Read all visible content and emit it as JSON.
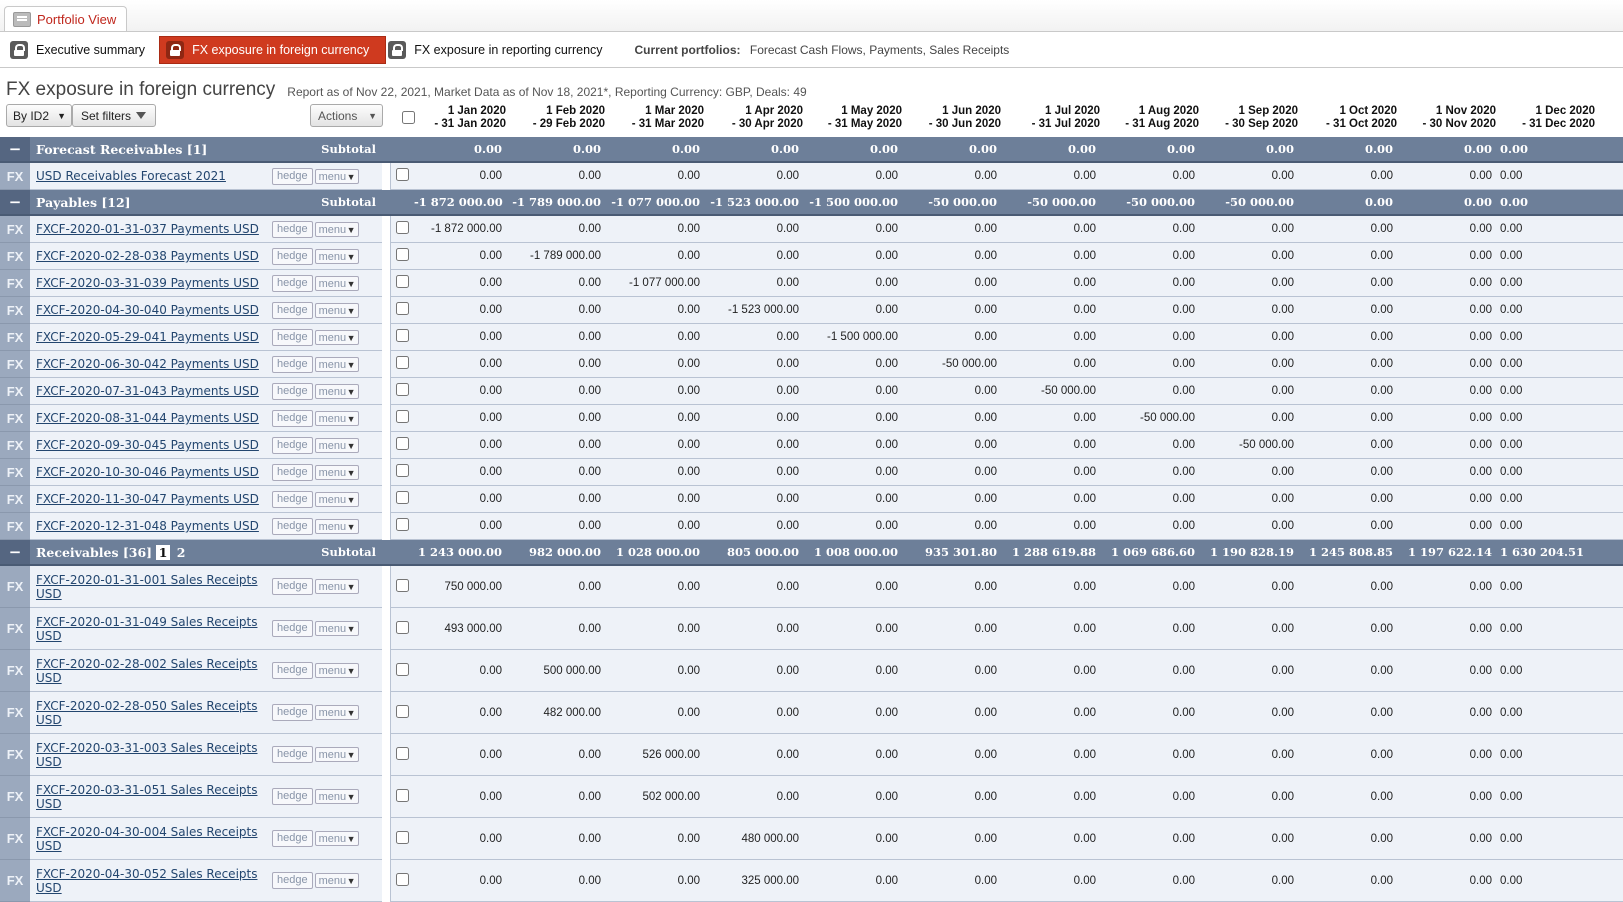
{
  "main_tab": {
    "label": "Portfolio View",
    "icon": "portfolio-icon"
  },
  "subtabs": [
    {
      "label": "Executive summary",
      "icon": "lock-icon",
      "active": false
    },
    {
      "label": "FX exposure in foreign currency",
      "icon": "lock-icon",
      "active": true
    },
    {
      "label": "FX exposure in reporting currency",
      "icon": "lock-icon",
      "active": false
    }
  ],
  "current_portfolios": {
    "label": "Current portfolios:",
    "value": "Forecast Cash Flows, Payments, Sales Receipts"
  },
  "report": {
    "title": "FX exposure in foreign currency",
    "meta": "Report as of Nov 22, 2021, Market Data as of Nov 18, 2021*, Reporting Currency: GBP, Deals: 49"
  },
  "controls": {
    "group_by": "By ID2",
    "set_filters": "Set filters",
    "actions": "Actions"
  },
  "columns": [
    {
      "l1": "1 Jan 2020",
      "l2": "- 31 Jan 2020"
    },
    {
      "l1": "1 Feb 2020",
      "l2": "- 29 Feb 2020"
    },
    {
      "l1": "1 Mar 2020",
      "l2": "- 31 Mar 2020"
    },
    {
      "l1": "1 Apr 2020",
      "l2": "- 30 Apr 2020"
    },
    {
      "l1": "1 May 2020",
      "l2": "- 31 May 2020"
    },
    {
      "l1": "1 Jun 2020",
      "l2": "- 30 Jun 2020"
    },
    {
      "l1": "1 Jul 2020",
      "l2": "- 31 Jul 2020"
    },
    {
      "l1": "1 Aug 2020",
      "l2": "- 31 Aug 2020"
    },
    {
      "l1": "1 Sep 2020",
      "l2": "- 30 Sep 2020"
    },
    {
      "l1": "1 Oct 2020",
      "l2": "- 31 Oct 2020"
    },
    {
      "l1": "1 Nov 2020",
      "l2": "- 30 Nov 2020"
    },
    {
      "l1": "1 Dec 2020",
      "l2": "- 31 Dec 2020"
    }
  ],
  "labels": {
    "subtotal": "Subtotal",
    "hedge": "hedge",
    "menu": "menu",
    "fx": "FX",
    "collapse": "−"
  },
  "groups": [
    {
      "name": "Forecast Receivables [1]",
      "pages": [],
      "subtotals": [
        "0.00",
        "0.00",
        "0.00",
        "0.00",
        "0.00",
        "0.00",
        "0.00",
        "0.00",
        "0.00",
        "0.00",
        "0.00",
        "0.00"
      ],
      "rows": [
        {
          "name": "USD Receivables Forecast 2021",
          "tall": false,
          "values": [
            "0.00",
            "0.00",
            "0.00",
            "0.00",
            "0.00",
            "0.00",
            "0.00",
            "0.00",
            "0.00",
            "0.00",
            "0.00",
            "0.00"
          ]
        }
      ]
    },
    {
      "name": "Payables [12]",
      "pages": [],
      "subtotals": [
        "-1 872 000.00",
        "-1 789 000.00",
        "-1 077 000.00",
        "-1 523 000.00",
        "-1 500 000.00",
        "-50 000.00",
        "-50 000.00",
        "-50 000.00",
        "-50 000.00",
        "0.00",
        "0.00",
        "0.00"
      ],
      "rows": [
        {
          "name": "FXCF-2020-01-31-037 Payments USD",
          "tall": false,
          "values": [
            "-1 872 000.00",
            "0.00",
            "0.00",
            "0.00",
            "0.00",
            "0.00",
            "0.00",
            "0.00",
            "0.00",
            "0.00",
            "0.00",
            "0.00"
          ]
        },
        {
          "name": "FXCF-2020-02-28-038 Payments USD",
          "tall": false,
          "values": [
            "0.00",
            "-1 789 000.00",
            "0.00",
            "0.00",
            "0.00",
            "0.00",
            "0.00",
            "0.00",
            "0.00",
            "0.00",
            "0.00",
            "0.00"
          ]
        },
        {
          "name": "FXCF-2020-03-31-039 Payments USD",
          "tall": false,
          "values": [
            "0.00",
            "0.00",
            "-1 077 000.00",
            "0.00",
            "0.00",
            "0.00",
            "0.00",
            "0.00",
            "0.00",
            "0.00",
            "0.00",
            "0.00"
          ]
        },
        {
          "name": "FXCF-2020-04-30-040 Payments USD",
          "tall": false,
          "values": [
            "0.00",
            "0.00",
            "0.00",
            "-1 523 000.00",
            "0.00",
            "0.00",
            "0.00",
            "0.00",
            "0.00",
            "0.00",
            "0.00",
            "0.00"
          ]
        },
        {
          "name": "FXCF-2020-05-29-041 Payments USD",
          "tall": false,
          "values": [
            "0.00",
            "0.00",
            "0.00",
            "0.00",
            "-1 500 000.00",
            "0.00",
            "0.00",
            "0.00",
            "0.00",
            "0.00",
            "0.00",
            "0.00"
          ]
        },
        {
          "name": "FXCF-2020-06-30-042 Payments USD",
          "tall": false,
          "values": [
            "0.00",
            "0.00",
            "0.00",
            "0.00",
            "0.00",
            "-50 000.00",
            "0.00",
            "0.00",
            "0.00",
            "0.00",
            "0.00",
            "0.00"
          ]
        },
        {
          "name": "FXCF-2020-07-31-043 Payments USD",
          "tall": false,
          "values": [
            "0.00",
            "0.00",
            "0.00",
            "0.00",
            "0.00",
            "0.00",
            "-50 000.00",
            "0.00",
            "0.00",
            "0.00",
            "0.00",
            "0.00"
          ]
        },
        {
          "name": "FXCF-2020-08-31-044 Payments USD",
          "tall": false,
          "values": [
            "0.00",
            "0.00",
            "0.00",
            "0.00",
            "0.00",
            "0.00",
            "0.00",
            "-50 000.00",
            "0.00",
            "0.00",
            "0.00",
            "0.00"
          ]
        },
        {
          "name": "FXCF-2020-09-30-045 Payments USD",
          "tall": false,
          "values": [
            "0.00",
            "0.00",
            "0.00",
            "0.00",
            "0.00",
            "0.00",
            "0.00",
            "0.00",
            "-50 000.00",
            "0.00",
            "0.00",
            "0.00"
          ]
        },
        {
          "name": "FXCF-2020-10-30-046 Payments USD",
          "tall": false,
          "values": [
            "0.00",
            "0.00",
            "0.00",
            "0.00",
            "0.00",
            "0.00",
            "0.00",
            "0.00",
            "0.00",
            "0.00",
            "0.00",
            "0.00"
          ]
        },
        {
          "name": "FXCF-2020-11-30-047 Payments USD",
          "tall": false,
          "values": [
            "0.00",
            "0.00",
            "0.00",
            "0.00",
            "0.00",
            "0.00",
            "0.00",
            "0.00",
            "0.00",
            "0.00",
            "0.00",
            "0.00"
          ]
        },
        {
          "name": "FXCF-2020-12-31-048 Payments USD",
          "tall": false,
          "values": [
            "0.00",
            "0.00",
            "0.00",
            "0.00",
            "0.00",
            "0.00",
            "0.00",
            "0.00",
            "0.00",
            "0.00",
            "0.00",
            "0.00"
          ]
        }
      ]
    },
    {
      "name": "Receivables [36]",
      "pages": [
        {
          "label": "1",
          "current": true
        },
        {
          "label": "2",
          "current": false
        }
      ],
      "subtotals": [
        "1 243 000.00",
        "982 000.00",
        "1 028 000.00",
        "805 000.00",
        "1 008 000.00",
        "935 301.80",
        "1 288 619.88",
        "1 069 686.60",
        "1 190 828.19",
        "1 245 808.85",
        "1 197 622.14",
        "1 630 204.51"
      ],
      "rows": [
        {
          "name": "FXCF-2020-01-31-001 Sales Receipts USD",
          "tall": true,
          "values": [
            "750 000.00",
            "0.00",
            "0.00",
            "0.00",
            "0.00",
            "0.00",
            "0.00",
            "0.00",
            "0.00",
            "0.00",
            "0.00",
            "0.00"
          ]
        },
        {
          "name": "FXCF-2020-01-31-049 Sales Receipts USD",
          "tall": true,
          "values": [
            "493 000.00",
            "0.00",
            "0.00",
            "0.00",
            "0.00",
            "0.00",
            "0.00",
            "0.00",
            "0.00",
            "0.00",
            "0.00",
            "0.00"
          ]
        },
        {
          "name": "FXCF-2020-02-28-002 Sales Receipts USD",
          "tall": true,
          "values": [
            "0.00",
            "500 000.00",
            "0.00",
            "0.00",
            "0.00",
            "0.00",
            "0.00",
            "0.00",
            "0.00",
            "0.00",
            "0.00",
            "0.00"
          ]
        },
        {
          "name": "FXCF-2020-02-28-050 Sales Receipts USD",
          "tall": true,
          "values": [
            "0.00",
            "482 000.00",
            "0.00",
            "0.00",
            "0.00",
            "0.00",
            "0.00",
            "0.00",
            "0.00",
            "0.00",
            "0.00",
            "0.00"
          ]
        },
        {
          "name": "FXCF-2020-03-31-003 Sales Receipts USD",
          "tall": true,
          "values": [
            "0.00",
            "0.00",
            "526 000.00",
            "0.00",
            "0.00",
            "0.00",
            "0.00",
            "0.00",
            "0.00",
            "0.00",
            "0.00",
            "0.00"
          ]
        },
        {
          "name": "FXCF-2020-03-31-051 Sales Receipts USD",
          "tall": true,
          "values": [
            "0.00",
            "0.00",
            "502 000.00",
            "0.00",
            "0.00",
            "0.00",
            "0.00",
            "0.00",
            "0.00",
            "0.00",
            "0.00",
            "0.00"
          ]
        },
        {
          "name": "FXCF-2020-04-30-004 Sales Receipts USD",
          "tall": true,
          "values": [
            "0.00",
            "0.00",
            "0.00",
            "480 000.00",
            "0.00",
            "0.00",
            "0.00",
            "0.00",
            "0.00",
            "0.00",
            "0.00",
            "0.00"
          ]
        },
        {
          "name": "FXCF-2020-04-30-052 Sales Receipts USD",
          "tall": true,
          "values": [
            "0.00",
            "0.00",
            "0.00",
            "325 000.00",
            "0.00",
            "0.00",
            "0.00",
            "0.00",
            "0.00",
            "0.00",
            "0.00",
            "0.00"
          ]
        }
      ]
    }
  ]
}
